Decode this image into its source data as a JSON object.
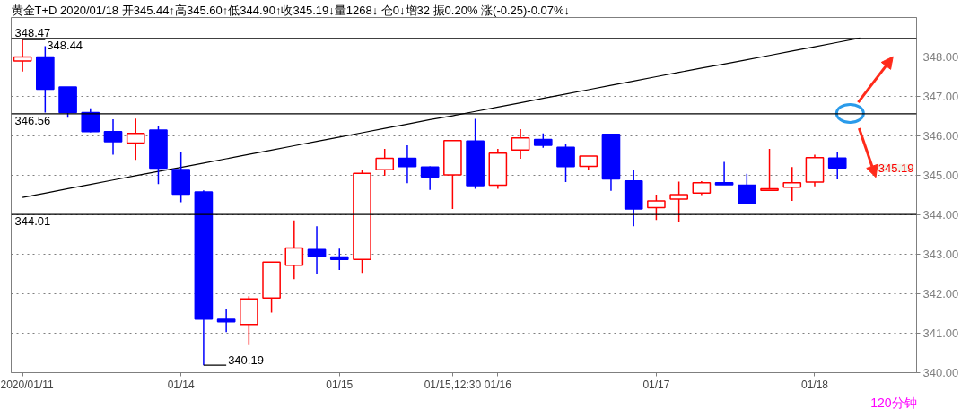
{
  "chart_data": {
    "type": "candlestick",
    "title": "黄金T+D 2020/01/18 开345.44↑高345.60↑低344.90↑收345.19↓量1268↓ 仓0↓增32 振0.20% 涨(-0.25)-0.07%↓",
    "categories": [
      "2020/01/11",
      null,
      null,
      null,
      null,
      null,
      null,
      "01/14",
      null,
      null,
      null,
      null,
      null,
      null,
      "01/15",
      null,
      null,
      null,
      null,
      "01/15,12:30",
      null,
      "01/16",
      null,
      null,
      null,
      null,
      null,
      null,
      "01/17",
      null,
      null,
      null,
      null,
      null,
      null,
      "01/18",
      null,
      null,
      null,
      null
    ],
    "ohlc": [
      [
        347.9,
        348.44,
        347.63,
        348.0
      ],
      [
        348.0,
        348.27,
        346.59,
        347.18
      ],
      [
        347.24,
        347.24,
        346.46,
        346.59
      ],
      [
        346.59,
        346.7,
        346.09,
        346.11
      ],
      [
        346.11,
        346.42,
        345.52,
        345.85
      ],
      [
        345.82,
        346.44,
        345.39,
        346.06
      ],
      [
        346.15,
        346.24,
        344.78,
        345.18
      ],
      [
        345.15,
        345.59,
        344.32,
        344.52
      ],
      [
        344.58,
        344.62,
        340.19,
        341.36
      ],
      [
        341.35,
        341.61,
        341.03,
        341.29
      ],
      [
        341.22,
        341.94,
        340.7,
        341.87
      ],
      [
        341.89,
        342.8,
        341.52,
        342.8
      ],
      [
        342.72,
        343.86,
        342.37,
        343.16
      ],
      [
        343.12,
        343.71,
        342.51,
        342.95
      ],
      [
        342.93,
        343.14,
        342.6,
        342.87
      ],
      [
        342.87,
        345.15,
        342.53,
        345.05
      ],
      [
        345.14,
        345.67,
        344.99,
        345.43
      ],
      [
        345.43,
        345.76,
        344.8,
        345.22
      ],
      [
        345.21,
        345.23,
        344.63,
        344.96
      ],
      [
        345.01,
        345.88,
        344.15,
        345.88
      ],
      [
        345.87,
        346.43,
        344.66,
        344.74
      ],
      [
        344.75,
        345.67,
        344.66,
        345.56
      ],
      [
        345.64,
        346.17,
        345.42,
        345.95
      ],
      [
        345.91,
        346.06,
        345.7,
        345.76
      ],
      [
        345.71,
        345.8,
        344.83,
        345.22
      ],
      [
        345.23,
        345.49,
        345.15,
        345.49
      ],
      [
        346.04,
        346.04,
        344.61,
        344.91
      ],
      [
        344.86,
        345.15,
        343.71,
        344.15
      ],
      [
        344.18,
        344.51,
        343.87,
        344.35
      ],
      [
        344.4,
        344.84,
        343.83,
        344.51
      ],
      [
        344.55,
        344.85,
        344.5,
        344.81
      ],
      [
        344.81,
        345.34,
        344.76,
        344.76
      ],
      [
        344.75,
        345.04,
        344.28,
        344.3
      ],
      [
        344.62,
        345.67,
        344.62,
        344.66
      ],
      [
        344.7,
        345.21,
        344.35,
        344.81
      ],
      [
        344.83,
        345.52,
        344.72,
        345.45
      ],
      [
        345.44,
        345.6,
        344.9,
        345.19
      ],
      null,
      null,
      null
    ],
    "colors": [
      "#ff0000",
      "#0000ff",
      "#0000ff",
      "#0000ff",
      "#0000ff",
      "#ff0000",
      "#0000ff",
      "#0000ff",
      "#0000ff",
      "#0000ff",
      "#ff0000",
      "#ff0000",
      "#ff0000",
      "#0000ff",
      "#0000ff",
      "#ff0000",
      "#ff0000",
      "#0000ff",
      "#0000ff",
      "#ff0000",
      "#0000ff",
      "#ff0000",
      "#ff0000",
      "#0000ff",
      "#0000ff",
      "#ff0000",
      "#0000ff",
      "#0000ff",
      "#ff0000",
      "#ff0000",
      "#ff0000",
      "#0000ff",
      "#0000ff",
      "#ff0000",
      "#ff0000",
      "#ff0000",
      "#0000ff",
      null,
      null,
      null
    ],
    "series": [
      {
        "type": "line",
        "color": "#000000",
        "values": [
          344.44,
          344.55,
          344.66,
          344.77,
          344.88,
          344.99,
          345.1,
          345.2,
          345.31,
          345.42,
          345.53,
          345.64,
          345.75,
          345.86,
          345.97,
          346.08,
          346.19,
          346.3,
          346.41,
          346.51,
          346.62,
          346.73,
          346.84,
          346.95,
          347.06,
          347.17,
          347.28,
          347.39,
          347.5,
          347.61,
          347.72,
          347.82,
          347.93,
          348.04,
          348.15,
          348.26,
          348.37,
          348.48,
          null,
          null
        ]
      }
    ],
    "ylim": [
      340,
      349
    ],
    "yticks": [
      {
        "value": 340,
        "label": "340.00"
      },
      {
        "value": 341,
        "label": "341.00"
      },
      {
        "value": 342,
        "label": "342.00"
      },
      {
        "value": 343,
        "label": "343.00"
      },
      {
        "value": 344,
        "label": "344.00"
      },
      {
        "value": 345,
        "label": "345.00"
      },
      {
        "value": 346,
        "label": "346.00"
      },
      {
        "value": 347,
        "label": "347.00"
      },
      {
        "value": 348,
        "label": "348.00"
      }
    ],
    "grid": "y",
    "ref_lines": [
      {
        "axis": "y",
        "value": 348.47,
        "label": "348.47",
        "color": "#000000"
      },
      {
        "axis": "y",
        "value": 346.56,
        "label": "346.56",
        "color": "#000000"
      },
      {
        "axis": "y",
        "value": 344.01,
        "label": "344.01",
        "color": "#000000"
      }
    ],
    "annotations": [
      {
        "text": "348.44",
        "x": "2020/01/11",
        "y": 348.44
      },
      "340.19",
      "345.19",
      "120分钟"
    ]
  }
}
